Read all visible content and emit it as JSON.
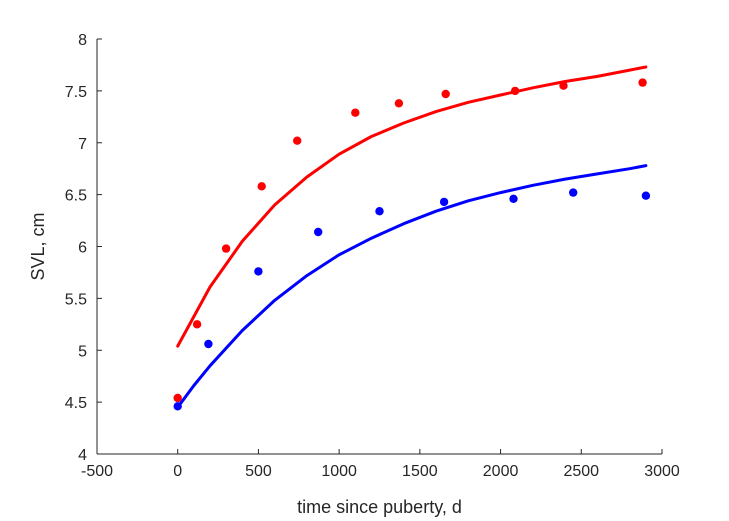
{
  "chart_data": {
    "type": "scatter",
    "title": "",
    "xlabel": "time since puberty, d",
    "ylabel": "SVL, cm",
    "xlim": [
      -500,
      3000
    ],
    "ylim": [
      4,
      8
    ],
    "xticks": [
      -500,
      0,
      500,
      1000,
      1500,
      2000,
      2500,
      3000
    ],
    "yticks": [
      4,
      4.5,
      5,
      5.5,
      6,
      6.5,
      7,
      7.5,
      8
    ],
    "grid": false,
    "legend": "none",
    "series": [
      {
        "color": "#ff0000",
        "points": {
          "x": [
            0,
            120,
            300,
            520,
            740,
            1100,
            1370,
            1660,
            2090,
            2390,
            2880
          ],
          "y": [
            4.54,
            5.25,
            5.98,
            6.58,
            7.02,
            7.29,
            7.38,
            7.47,
            7.5,
            7.55,
            7.58
          ]
        },
        "fit_curve": {
          "x": [
            0,
            200,
            400,
            600,
            800,
            1000,
            1200,
            1400,
            1600,
            1800,
            2000,
            2200,
            2400,
            2600,
            2800,
            2900
          ],
          "y": [
            5.04,
            5.61,
            6.05,
            6.4,
            6.67,
            6.89,
            7.06,
            7.19,
            7.3,
            7.39,
            7.46,
            7.53,
            7.59,
            7.64,
            7.7,
            7.73
          ]
        }
      },
      {
        "color": "#0000ff",
        "points": {
          "x": [
            0,
            190,
            500,
            870,
            1250,
            1650,
            2080,
            2450,
            2900
          ],
          "y": [
            4.46,
            5.06,
            5.76,
            6.14,
            6.34,
            6.43,
            6.46,
            6.52,
            6.49
          ]
        },
        "fit_curve": {
          "x": [
            0,
            100,
            200,
            400,
            600,
            800,
            1000,
            1200,
            1400,
            1600,
            1800,
            2000,
            2200,
            2400,
            2600,
            2800,
            2900
          ],
          "y": [
            4.45,
            4.66,
            4.85,
            5.19,
            5.48,
            5.72,
            5.92,
            6.08,
            6.22,
            6.34,
            6.44,
            6.52,
            6.59,
            6.65,
            6.7,
            6.75,
            6.78
          ]
        }
      }
    ]
  }
}
